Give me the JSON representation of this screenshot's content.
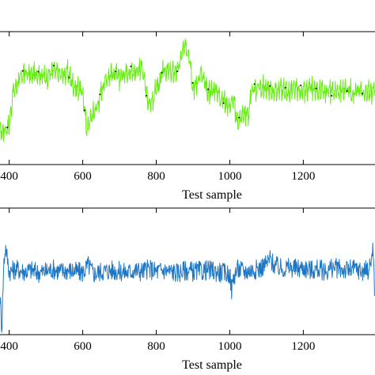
{
  "chart_data": [
    {
      "type": "line",
      "xlabel": "Test sample",
      "ylabel": "",
      "xlim": [
        375,
        1395
      ],
      "ylim": [
        0,
        1
      ],
      "x_ticks": [
        400,
        600,
        800,
        1000,
        1200
      ],
      "x_tick_labels": [
        "400",
        "600",
        "800",
        "1000",
        "1200"
      ],
      "grid": false,
      "series": [
        {
          "color": "#66ee11",
          "x": [
            375,
            390,
            400,
            410,
            420,
            440,
            460,
            480,
            500,
            520,
            540,
            560,
            575,
            590,
            600,
            610,
            620,
            640,
            660,
            680,
            700,
            720,
            740,
            760,
            770,
            780,
            790,
            800,
            810,
            820,
            840,
            860,
            870,
            880,
            890,
            900,
            910,
            920,
            940,
            960,
            980,
            1000,
            1010,
            1020,
            1040,
            1050,
            1060,
            1080,
            1100,
            1120,
            1140,
            1160,
            1180,
            1200,
            1220,
            1240,
            1260,
            1280,
            1300,
            1320,
            1340,
            1360,
            1380,
            1395
          ],
          "values": [
            0.25,
            0.28,
            0.3,
            0.55,
            0.6,
            0.7,
            0.68,
            0.7,
            0.66,
            0.72,
            0.68,
            0.7,
            0.6,
            0.58,
            0.55,
            0.28,
            0.35,
            0.45,
            0.65,
            0.7,
            0.66,
            0.72,
            0.7,
            0.75,
            0.6,
            0.45,
            0.5,
            0.58,
            0.62,
            0.72,
            0.7,
            0.72,
            0.85,
            0.9,
            0.85,
            0.58,
            0.62,
            0.7,
            0.55,
            0.58,
            0.5,
            0.45,
            0.5,
            0.32,
            0.4,
            0.38,
            0.55,
            0.6,
            0.58,
            0.56,
            0.58,
            0.55,
            0.57,
            0.55,
            0.58,
            0.56,
            0.57,
            0.55,
            0.56,
            0.58,
            0.55,
            0.57,
            0.55,
            0.56
          ],
          "noise_amplitude": 0.12
        },
        {
          "color": "#1f77c4",
          "x": [
            375,
            380,
            385,
            390,
            400,
            420,
            440,
            460,
            480,
            500,
            520,
            540,
            560,
            580,
            600,
            615,
            630,
            650,
            680,
            700,
            720,
            740,
            760,
            780,
            800,
            820,
            840,
            860,
            880,
            900,
            920,
            940,
            960,
            980,
            1000,
            1005,
            1010,
            1020,
            1040,
            1060,
            1080,
            1100,
            1110,
            1120,
            1140,
            1160,
            1180,
            1200,
            1220,
            1240,
            1260,
            1280,
            1300,
            1320,
            1340,
            1360,
            1380,
            1385,
            1390,
            1395
          ],
          "values": [
            0.3,
            0.05,
            0.55,
            0.7,
            0.5,
            0.52,
            0.5,
            0.51,
            0.49,
            0.5,
            0.52,
            0.5,
            0.51,
            0.5,
            0.49,
            0.55,
            0.48,
            0.5,
            0.51,
            0.5,
            0.49,
            0.51,
            0.5,
            0.52,
            0.5,
            0.51,
            0.5,
            0.49,
            0.51,
            0.5,
            0.5,
            0.51,
            0.5,
            0.49,
            0.48,
            0.35,
            0.45,
            0.52,
            0.5,
            0.51,
            0.52,
            0.56,
            0.6,
            0.55,
            0.52,
            0.53,
            0.52,
            0.53,
            0.51,
            0.52,
            0.5,
            0.53,
            0.52,
            0.51,
            0.52,
            0.5,
            0.52,
            0.6,
            0.7,
            0.2
          ],
          "noise_amplitude": 0.08
        }
      ]
    }
  ]
}
